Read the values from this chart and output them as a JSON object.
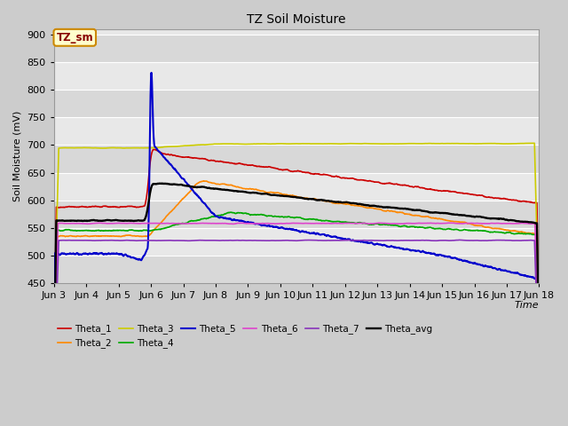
{
  "title": "TZ Soil Moisture",
  "ylabel": "Soil Moisture (mV)",
  "xlabel": "Time",
  "ylim": [
    450,
    910
  ],
  "yticks": [
    450,
    500,
    550,
    600,
    650,
    700,
    750,
    800,
    850,
    900
  ],
  "x_labels": [
    "Jun 3",
    "Jun 4",
    "Jun 5",
    "Jun 6",
    "Jun 7",
    "Jun 8",
    "Jun 9",
    "Jun 10",
    "Jun 11",
    "Jun 12",
    "Jun 13",
    "Jun 14",
    "Jun 15",
    "Jun 16",
    "Jun 17",
    "Jun 18"
  ],
  "series": {
    "Theta_1": {
      "color": "#cc0000"
    },
    "Theta_2": {
      "color": "#ff8800"
    },
    "Theta_3": {
      "color": "#cccc00"
    },
    "Theta_4": {
      "color": "#00aa00"
    },
    "Theta_5": {
      "color": "#0000cc"
    },
    "Theta_6": {
      "color": "#dd44cc"
    },
    "Theta_7": {
      "color": "#8833bb"
    },
    "Theta_avg": {
      "color": "#000000"
    }
  },
  "legend_label": "TZ_sm",
  "legend_box_facecolor": "#ffffcc",
  "legend_box_edgecolor": "#cc8800",
  "legend_text_color": "#880000",
  "fig_facecolor": "#cccccc",
  "plot_bg_light": "#e8e8e8",
  "plot_bg_dark": "#d8d8d8",
  "grid_color": "#ffffff",
  "n_days": 15,
  "spike_day": 3.0
}
